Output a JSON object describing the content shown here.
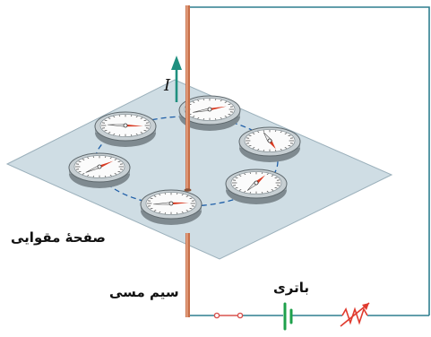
{
  "labels": {
    "current": "I",
    "cardboard": "صفحهٔ مقوایی",
    "wire": "سیم مسی",
    "battery": "باتری"
  },
  "colors": {
    "wire": "#c8704a",
    "circuit": "#2f7f8f",
    "current_arrow": "#1f8f7f",
    "plane": "#cfdde4",
    "plane_edge": "#9bb0bb",
    "field_line": "#1f5fa8",
    "needle": "#d93a22",
    "battery": "#1ea04b",
    "rheostat": "#e03a2e",
    "switch": "#d9534f"
  },
  "compasses": [
    {
      "needle_angle": -20
    },
    {
      "needle_angle": 5
    },
    {
      "needle_angle": 70
    },
    {
      "needle_angle": -40
    },
    {
      "needle_angle": -60
    },
    {
      "needle_angle": -5
    }
  ]
}
